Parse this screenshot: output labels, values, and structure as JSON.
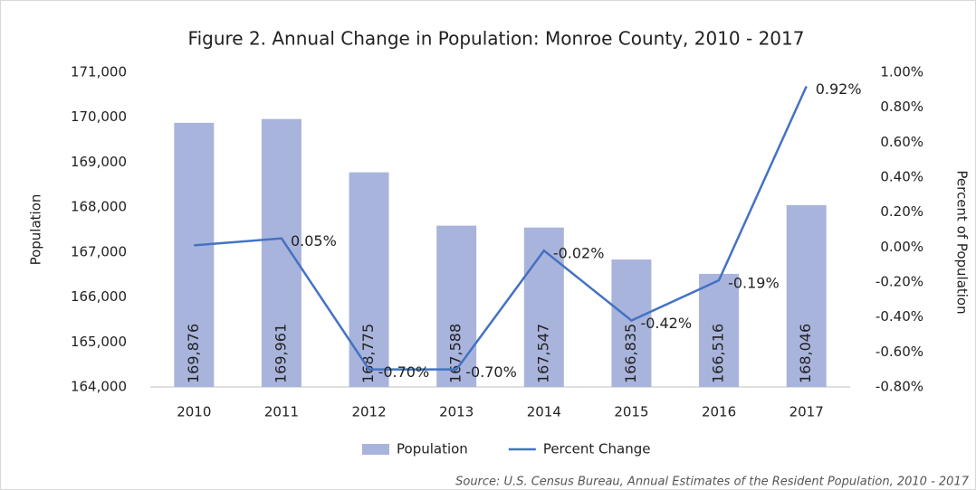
{
  "chart_data": {
    "type": "bar",
    "title": "Figure 2. Annual Change in Population: Monroe County, 2010 - 2017",
    "y_label": "Population",
    "y2_label": "Percent of Population",
    "source": "Source: U.S. Census Bureau, Annual Estimates of the Resident Population, 2010 - 2017",
    "categories": [
      "2010",
      "2011",
      "2012",
      "2013",
      "2014",
      "2015",
      "2016",
      "2017"
    ],
    "series": [
      {
        "name": "Population",
        "type": "bar",
        "color": "#a9b4dc",
        "values": [
          169876,
          169961,
          168775,
          167588,
          167547,
          166835,
          166516,
          168046
        ],
        "value_labels": [
          "169,876",
          "169,961",
          "168,775",
          "167,588",
          "167,547",
          "166,835",
          "166,516",
          "168,046"
        ]
      },
      {
        "name": "Percent Change",
        "type": "line",
        "axis": "y2",
        "color": "#4472c4",
        "values": [
          0.01,
          0.05,
          -0.7,
          -0.7,
          -0.02,
          -0.42,
          -0.19,
          0.92
        ],
        "value_labels": [
          null,
          "0.05%",
          "-0.70%",
          "-0.70%",
          "-0.02%",
          "-0.42%",
          "-0.19%",
          "0.92%"
        ]
      }
    ],
    "ylim": [
      164000,
      171000
    ],
    "yticks": [
      {
        "value": 164000,
        "label": "164,000"
      },
      {
        "value": 165000,
        "label": "165,000"
      },
      {
        "value": 166000,
        "label": "166,000"
      },
      {
        "value": 167000,
        "label": "167,000"
      },
      {
        "value": 168000,
        "label": "168,000"
      },
      {
        "value": 169000,
        "label": "169,000"
      },
      {
        "value": 170000,
        "label": "170,000"
      },
      {
        "value": 171000,
        "label": "171,000"
      }
    ],
    "y2lim": [
      -0.8,
      1.0
    ],
    "y2ticks": [
      {
        "value": -0.8,
        "label": "-0.80%"
      },
      {
        "value": -0.6,
        "label": "-0.60%"
      },
      {
        "value": -0.4,
        "label": "-0.40%"
      },
      {
        "value": -0.2,
        "label": "-0.20%"
      },
      {
        "value": 0,
        "label": "0.00%"
      },
      {
        "value": 0.2,
        "label": "0.20%"
      },
      {
        "value": 0.4,
        "label": "0.40%"
      },
      {
        "value": 0.6,
        "label": "0.60%"
      },
      {
        "value": 0.8,
        "label": "0.80%"
      },
      {
        "value": 1.0,
        "label": "1.00%"
      }
    ],
    "grid": false,
    "legend": "bottom"
  }
}
